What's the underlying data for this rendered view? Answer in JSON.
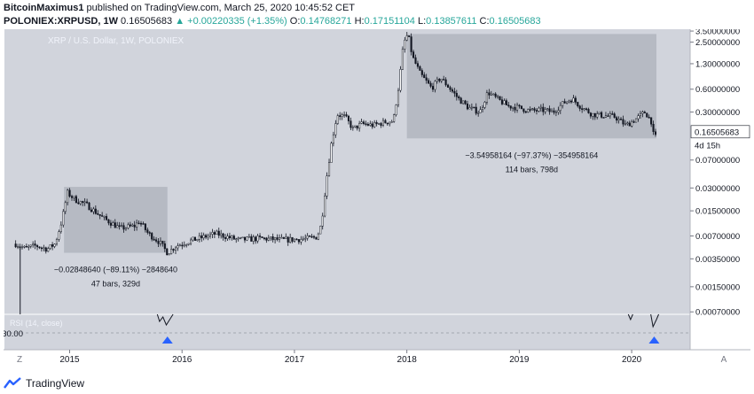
{
  "header": {
    "author": "BitcoinMaximus1",
    "published_text": " published on TradingView.com, March 25, 2020 10:45:52 CET",
    "symbol": "POLONIEX:XRPUSD, 1W",
    "last_price": "0.16505683",
    "change_arrow": "▲",
    "change": "+0.00220335 (+1.35%)",
    "o_label": "O:",
    "o_value": "0.14768271",
    "h_label": "H:",
    "h_value": "0.17151104",
    "l_label": "L:",
    "l_value": "0.13857611",
    "c_label": "C:",
    "c_value": "0.16505683"
  },
  "footer": {
    "brand": "TradingView"
  },
  "colors": {
    "plot_bg": "#d1d4dc",
    "scale_bg": "#ffffff",
    "candle": "#131722",
    "box": "#b2b5be",
    "rsi_marker": "#2962ff",
    "watermark": "#f0f3fa"
  },
  "chart_data": {
    "type": "candlestick",
    "watermark": "XRP / U.S. Dollar, 1W, POLONIEX",
    "y_scale": "log",
    "y_ticks": [
      "3.50000000",
      "2.50000000",
      "1.30000000",
      "0.60000000",
      "0.30000000",
      "0.16505683",
      "0.07000000",
      "0.03000000",
      "0.01500000",
      "0.00700000",
      "0.00350000",
      "0.00150000",
      "0.00070000"
    ],
    "price_label": "0.16505683",
    "countdown": "4d 15h",
    "x_ticks": [
      "2015",
      "2016",
      "2017",
      "2018",
      "2019",
      "2020"
    ],
    "ylim": [
      0.00065,
      3.7
    ],
    "price_path": [
      {
        "t": 2014.52,
        "p": 0.0055
      },
      {
        "t": 2014.6,
        "p": 0.0048
      },
      {
        "t": 2014.7,
        "p": 0.0052
      },
      {
        "t": 2014.8,
        "p": 0.0047
      },
      {
        "t": 2014.87,
        "p": 0.0055
      },
      {
        "t": 2014.93,
        "p": 0.011
      },
      {
        "t": 2014.98,
        "p": 0.026
      },
      {
        "t": 2015.05,
        "p": 0.021
      },
      {
        "t": 2015.15,
        "p": 0.018
      },
      {
        "t": 2015.3,
        "p": 0.012
      },
      {
        "t": 2015.45,
        "p": 0.0088
      },
      {
        "t": 2015.58,
        "p": 0.0095
      },
      {
        "t": 2015.62,
        "p": 0.011
      },
      {
        "t": 2015.7,
        "p": 0.0075
      },
      {
        "t": 2015.8,
        "p": 0.0058
      },
      {
        "t": 2015.87,
        "p": 0.0042
      },
      {
        "t": 2015.95,
        "p": 0.0052
      },
      {
        "t": 2016.1,
        "p": 0.0062
      },
      {
        "t": 2016.3,
        "p": 0.0075
      },
      {
        "t": 2016.5,
        "p": 0.0062
      },
      {
        "t": 2016.7,
        "p": 0.0065
      },
      {
        "t": 2016.9,
        "p": 0.0062
      },
      {
        "t": 2017.1,
        "p": 0.0064
      },
      {
        "t": 2017.2,
        "p": 0.0068
      },
      {
        "t": 2017.24,
        "p": 0.01
      },
      {
        "t": 2017.28,
        "p": 0.035
      },
      {
        "t": 2017.33,
        "p": 0.12
      },
      {
        "t": 2017.38,
        "p": 0.28
      },
      {
        "t": 2017.45,
        "p": 0.26
      },
      {
        "t": 2017.52,
        "p": 0.18
      },
      {
        "t": 2017.6,
        "p": 0.21
      },
      {
        "t": 2017.7,
        "p": 0.2
      },
      {
        "t": 2017.8,
        "p": 0.22
      },
      {
        "t": 2017.88,
        "p": 0.23
      },
      {
        "t": 2017.93,
        "p": 0.7
      },
      {
        "t": 2017.97,
        "p": 2.4
      },
      {
        "t": 2018.01,
        "p": 3.2
      },
      {
        "t": 2018.05,
        "p": 1.6
      },
      {
        "t": 2018.12,
        "p": 0.95
      },
      {
        "t": 2018.22,
        "p": 0.62
      },
      {
        "t": 2018.3,
        "p": 0.85
      },
      {
        "t": 2018.38,
        "p": 0.62
      },
      {
        "t": 2018.46,
        "p": 0.45
      },
      {
        "t": 2018.55,
        "p": 0.34
      },
      {
        "t": 2018.65,
        "p": 0.3
      },
      {
        "t": 2018.72,
        "p": 0.55
      },
      {
        "t": 2018.8,
        "p": 0.45
      },
      {
        "t": 2018.9,
        "p": 0.36
      },
      {
        "t": 2019.0,
        "p": 0.34
      },
      {
        "t": 2019.1,
        "p": 0.31
      },
      {
        "t": 2019.2,
        "p": 0.32
      },
      {
        "t": 2019.3,
        "p": 0.3
      },
      {
        "t": 2019.4,
        "p": 0.4
      },
      {
        "t": 2019.47,
        "p": 0.45
      },
      {
        "t": 2019.55,
        "p": 0.35
      },
      {
        "t": 2019.65,
        "p": 0.28
      },
      {
        "t": 2019.75,
        "p": 0.27
      },
      {
        "t": 2019.85,
        "p": 0.26
      },
      {
        "t": 2019.95,
        "p": 0.2
      },
      {
        "t": 2020.05,
        "p": 0.25
      },
      {
        "t": 2020.12,
        "p": 0.3
      },
      {
        "t": 2020.18,
        "p": 0.22
      },
      {
        "t": 2020.2,
        "p": 0.125
      },
      {
        "t": 2020.23,
        "p": 0.165
      }
    ],
    "annotations": [
      {
        "t1": 2014.95,
        "t2": 2015.87,
        "p1": 0.0042,
        "p2": 0.031,
        "line1": "−0.02848640 (−89.11%) −2848640",
        "line2": "47 bars, 329d"
      },
      {
        "t1": 2018.0,
        "t2": 2020.22,
        "p1": 0.135,
        "p2": 3.2,
        "line1": "−3.54958164 (−97.37%) −354958164",
        "line2": "114 bars, 798d"
      }
    ],
    "rsi": {
      "label": "RSI (14, close)",
      "level_label": "30.00",
      "markers": [
        2015.87,
        2020.2
      ]
    },
    "corner_left": "Z",
    "corner_right": "A"
  }
}
